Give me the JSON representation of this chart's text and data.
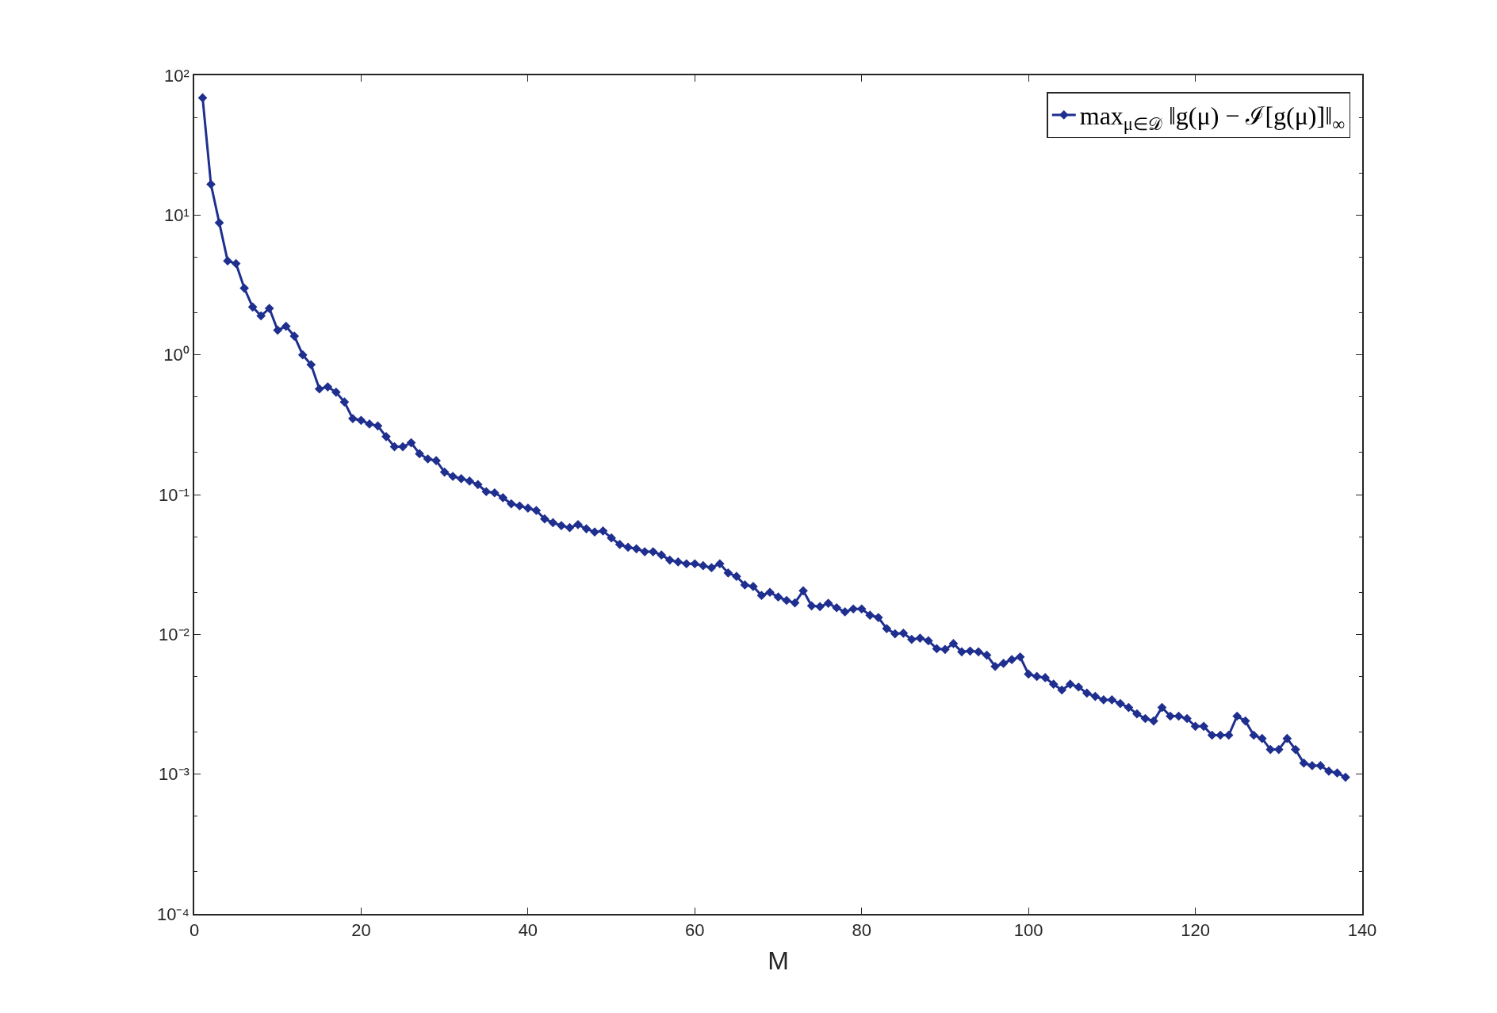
{
  "chart_data": {
    "type": "line",
    "xlabel": "M",
    "x": [
      1,
      2,
      3,
      4,
      5,
      6,
      7,
      8,
      9,
      10,
      11,
      12,
      13,
      14,
      15,
      16,
      17,
      18,
      19,
      20,
      21,
      22,
      23,
      24,
      25,
      26,
      27,
      28,
      29,
      30,
      31,
      32,
      33,
      34,
      35,
      36,
      37,
      38,
      39,
      40,
      41,
      42,
      43,
      44,
      45,
      46,
      47,
      48,
      49,
      50,
      51,
      52,
      53,
      54,
      55,
      56,
      57,
      58,
      59,
      60,
      61,
      62,
      63,
      64,
      65,
      66,
      67,
      68,
      69,
      70,
      71,
      72,
      73,
      74,
      75,
      76,
      77,
      78,
      79,
      80,
      81,
      82,
      83,
      84,
      85,
      86,
      87,
      88,
      89,
      90,
      91,
      92,
      93,
      94,
      95,
      96,
      97,
      98,
      99,
      100,
      101,
      102,
      103,
      104,
      105,
      106,
      107,
      108,
      109,
      110,
      111,
      112,
      113,
      114,
      115,
      116,
      117,
      118,
      119,
      120,
      121,
      122,
      123,
      124,
      125,
      126,
      127,
      128,
      129,
      130,
      131,
      132,
      133,
      134,
      135,
      136,
      137,
      138
    ],
    "series": [
      {
        "name": "max$_{μ∈𝒟}$ ‖g(μ) − ℐ[g(μ)]‖$_{∞}$",
        "color": "#1f2f8f",
        "values": [
          69,
          16.6,
          8.8,
          4.7,
          4.5,
          3.0,
          2.2,
          1.9,
          2.15,
          1.5,
          1.6,
          1.36,
          1.0,
          0.85,
          0.57,
          0.59,
          0.54,
          0.46,
          0.35,
          0.34,
          0.32,
          0.31,
          0.26,
          0.22,
          0.22,
          0.235,
          0.196,
          0.18,
          0.175,
          0.145,
          0.135,
          0.13,
          0.125,
          0.118,
          0.105,
          0.103,
          0.095,
          0.086,
          0.083,
          0.08,
          0.077,
          0.067,
          0.063,
          0.06,
          0.058,
          0.061,
          0.057,
          0.054,
          0.055,
          0.049,
          0.044,
          0.042,
          0.041,
          0.039,
          0.039,
          0.037,
          0.034,
          0.033,
          0.032,
          0.032,
          0.031,
          0.03,
          0.032,
          0.0275,
          0.026,
          0.0226,
          0.022,
          0.019,
          0.02,
          0.0185,
          0.0175,
          0.0168,
          0.0205,
          0.016,
          0.0158,
          0.0167,
          0.0155,
          0.0145,
          0.0152,
          0.0152,
          0.0137,
          0.0132,
          0.011,
          0.0101,
          0.0102,
          0.0092,
          0.0094,
          0.009,
          0.0079,
          0.0078,
          0.0086,
          0.0075,
          0.0076,
          0.0075,
          0.0071,
          0.0059,
          0.0062,
          0.0066,
          0.0069,
          0.0052,
          0.005,
          0.0049,
          0.0044,
          0.004,
          0.0044,
          0.0042,
          0.0038,
          0.0036,
          0.0034,
          0.0034,
          0.0032,
          0.003,
          0.0027,
          0.0025,
          0.0024,
          0.003,
          0.0026,
          0.0026,
          0.0025,
          0.0022,
          0.0022,
          0.0019,
          0.0019,
          0.0019,
          0.0026,
          0.0024,
          0.0019,
          0.0018,
          0.0015,
          0.0015,
          0.0018,
          0.0015,
          0.0012,
          0.00115,
          0.00115,
          0.00105,
          0.00102,
          0.00095
        ]
      }
    ],
    "xlim": [
      0,
      140
    ],
    "xticks": [
      0,
      20,
      40,
      60,
      80,
      100,
      120,
      140
    ],
    "log": "y",
    "ylim": [
      0.0001,
      100
    ],
    "yticks": [
      {
        "value": 0.0001,
        "label": "10⁻⁴"
      },
      {
        "value": 0.001,
        "label": "10⁻³"
      },
      {
        "value": 0.01,
        "label": "10⁻²"
      },
      {
        "value": 0.1,
        "label": "10⁻¹"
      },
      {
        "value": 1,
        "label": "10⁰"
      },
      {
        "value": 10,
        "label": "10¹"
      },
      {
        "value": 100,
        "label": "10²"
      }
    ],
    "legend": "top right",
    "marker": "diamond",
    "line_style": "solid"
  }
}
